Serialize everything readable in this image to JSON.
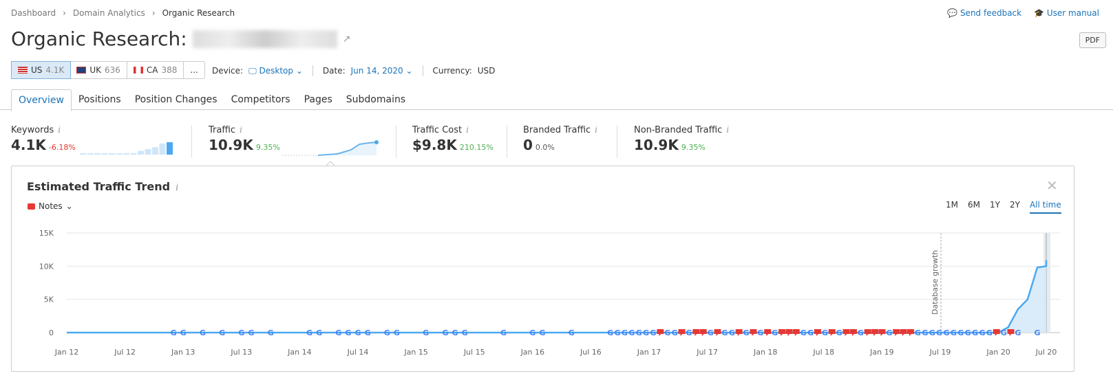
{
  "breadcrumb": [
    "Dashboard",
    "Domain Analytics",
    "Organic Research"
  ],
  "toplinks": {
    "feedback": "Send feedback",
    "manual": "User manual"
  },
  "title": "Organic Research:",
  "pdf": "PDF",
  "databases": [
    {
      "code": "US",
      "count": "4.1K"
    },
    {
      "code": "UK",
      "count": "636"
    },
    {
      "code": "CA",
      "count": "388"
    }
  ],
  "more": "...",
  "device": {
    "label": "Device:",
    "value": "Desktop"
  },
  "date": {
    "label": "Date:",
    "value": "Jun 14, 2020"
  },
  "currency": {
    "label": "Currency:",
    "value": "USD"
  },
  "tabs": [
    "Overview",
    "Positions",
    "Position Changes",
    "Competitors",
    "Pages",
    "Subdomains"
  ],
  "metrics": [
    {
      "label": "Keywords",
      "value": "4.1K",
      "change": "-6.18%",
      "color": "#e0362c"
    },
    {
      "label": "Traffic",
      "value": "10.9K",
      "change": "9.35%",
      "color": "#4caf50"
    },
    {
      "label": "Traffic Cost",
      "value": "$9.8K",
      "change": "210.15%",
      "color": "#4caf50"
    },
    {
      "label": "Branded Traffic",
      "value": "0",
      "change": "0.0%",
      "color": "#555"
    },
    {
      "label": "Non-Branded Traffic",
      "value": "10.9K",
      "change": "9.35%",
      "color": "#4caf50"
    }
  ],
  "keyword_bars": [
    0.05,
    0.05,
    0.05,
    0.05,
    0.05,
    0.05,
    0.05,
    0.05,
    0.3,
    0.45,
    0.6,
    0.9,
    1
  ],
  "chart": {
    "title": "Estimated Traffic Trend",
    "notes": "Notes",
    "ranges": [
      "1M",
      "6M",
      "1Y",
      "2Y",
      "All time"
    ],
    "annotation": "Database growth",
    "annotation_month": 90
  },
  "chart_data": {
    "type": "area",
    "ylim": [
      0,
      15000
    ],
    "yticks": [
      "0",
      "5K",
      "10K",
      "15K"
    ],
    "xticks": [
      "Jan 12",
      "Jul 12",
      "Jan 13",
      "Jul 13",
      "Jan 14",
      "Jul 14",
      "Jan 15",
      "Jul 15",
      "Jan 16",
      "Jul 16",
      "Jan 17",
      "Jul 17",
      "Jan 18",
      "Jul 18",
      "Jan 19",
      "Jul 19",
      "Jan 20",
      "Jul 20"
    ],
    "series_tail": [
      {
        "month": 96,
        "value": 0
      },
      {
        "month": 97,
        "value": 800
      },
      {
        "month": 98,
        "value": 3500
      },
      {
        "month": 99,
        "value": 5000
      },
      {
        "month": 100,
        "value": 9800
      },
      {
        "month": 101,
        "value": 10000
      },
      {
        "month": 102,
        "value": 10000
      },
      {
        "month": 103,
        "value": 10900
      }
    ],
    "early_markers": [
      11,
      12,
      14,
      16,
      18,
      19,
      21,
      25,
      26,
      28,
      29,
      30,
      31,
      33,
      34,
      37,
      39,
      40,
      41,
      45,
      48,
      49,
      52
    ],
    "dense_start": 56,
    "dense_sequence": "GGGGGGGRGGRGRRGRGGRGRGRGRRRGGRGRGRRGRRRGRRRGGGGGGGGGGGRGRG",
    "late_markers": [
      100
    ]
  },
  "colors": {
    "accent": "#1a73b8",
    "line": "#4aa8f0",
    "fill": "#d6eafa",
    "note": "#e53935"
  }
}
